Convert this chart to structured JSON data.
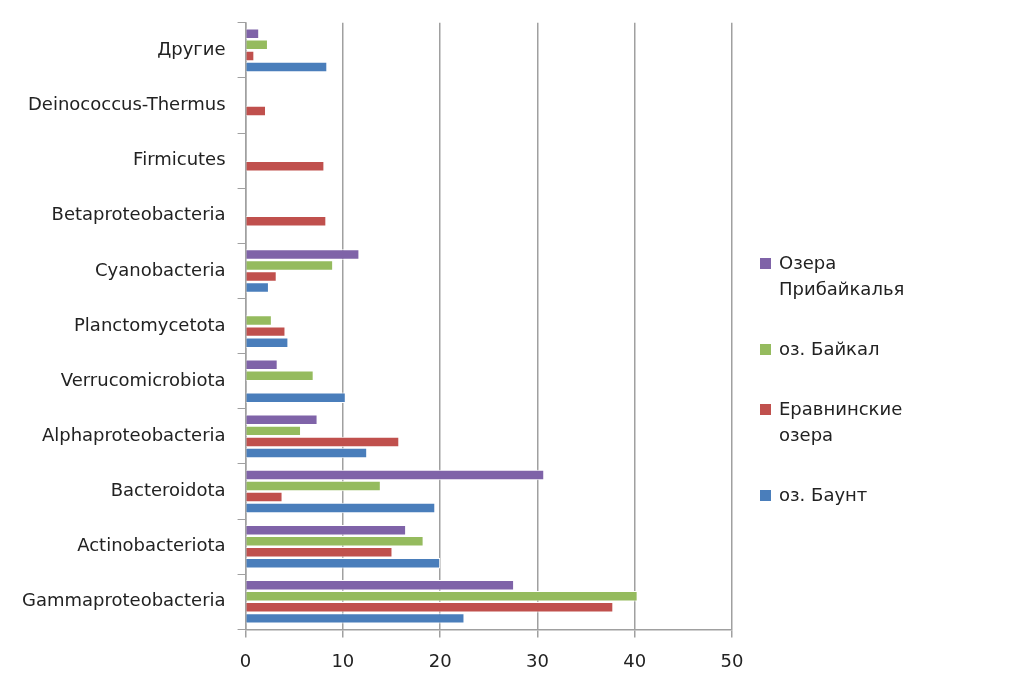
{
  "chart_data": {
    "type": "bar",
    "orientation": "horizontal",
    "categories": [
      "Другие",
      "Deinococcus-Thermus",
      "Firmicutes",
      "Betaproteobacteria",
      "Cyanobacteria",
      "Planctomycetota",
      "Verrucomicrobiota",
      "Alphaproteobacteria",
      "Bacteroidota",
      "Actinobacteriota",
      "Gammaproteobacteria"
    ],
    "series": [
      {
        "name": "Озера Прибайкалья",
        "color": "#7f63a8",
        "values": [
          1.4,
          null,
          null,
          null,
          11.7,
          null,
          3.3,
          7.4,
          30.7,
          16.5,
          27.6
        ]
      },
      {
        "name": "оз. Байкал",
        "color": "#95bb5e",
        "values": [
          2.3,
          null,
          null,
          null,
          9.0,
          2.7,
          7.0,
          5.7,
          13.9,
          18.3,
          40.3
        ]
      },
      {
        "name": "Еравнинские озера",
        "color": "#c0504d",
        "values": [
          0.9,
          2.1,
          8.1,
          8.3,
          3.2,
          4.1,
          null,
          15.8,
          3.8,
          15.1,
          37.8
        ]
      },
      {
        "name": "оз. Баунт",
        "color": "#4a7ebb",
        "values": [
          8.4,
          null,
          null,
          null,
          2.4,
          4.4,
          10.3,
          12.5,
          19.5,
          20.0,
          22.5
        ]
      }
    ],
    "xlim": [
      0,
      50
    ],
    "xticks": [
      0,
      10,
      20,
      30,
      40,
      50
    ],
    "grid": "x",
    "legend": "right"
  }
}
